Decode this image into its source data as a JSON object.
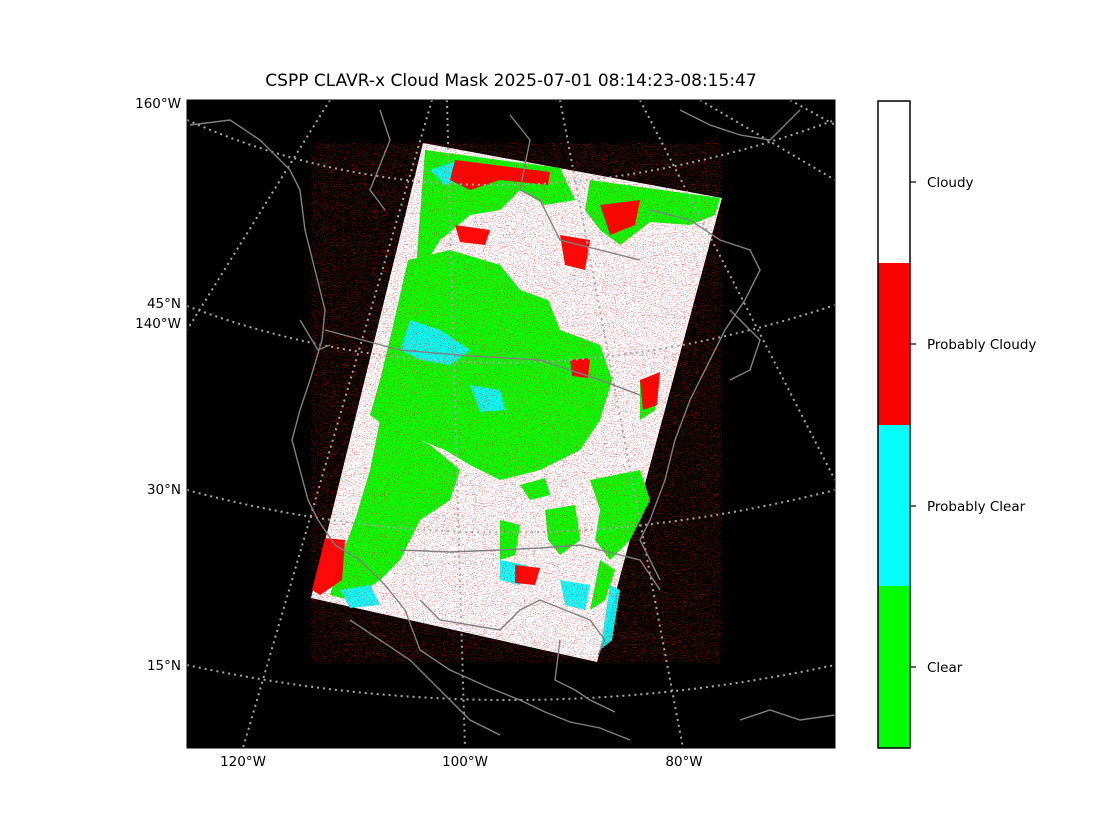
{
  "title": "CSPP CLAVR-x Cloud Mask 2025-07-01 08:14:23-08:15:47",
  "map": {
    "background_color": "#000000",
    "coastline_color": "#808080",
    "gridline_color": "#a6a6a6",
    "left_labels": [
      {
        "text": "160°W"
      },
      {
        "text": "45°N"
      },
      {
        "text": "140°W"
      },
      {
        "text": "30°N"
      },
      {
        "text": "15°N"
      }
    ],
    "bottom_labels": [
      {
        "text": "120°W"
      },
      {
        "text": "100°W"
      },
      {
        "text": "80°W"
      }
    ]
  },
  "colorbar": {
    "categories": [
      {
        "label": "Cloudy",
        "color": "#ffffff"
      },
      {
        "label": "Probably Cloudy",
        "color": "#ff0000"
      },
      {
        "label": "Probably Clear",
        "color": "#00ffff"
      },
      {
        "label": "Clear",
        "color": "#00ff00"
      }
    ]
  }
}
